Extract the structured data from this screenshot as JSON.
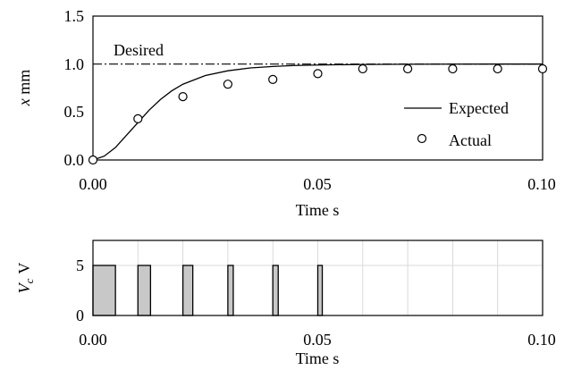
{
  "chart_data": [
    {
      "type": "line",
      "xlabel": "Time s",
      "ylabel_var": "x",
      "ylabel_unit": "mm",
      "xlim": [
        0,
        0.1
      ],
      "ylim": [
        0,
        1.5
      ],
      "x_ticks": [
        "0.00",
        "0.05",
        "0.10"
      ],
      "y_ticks": [
        "0.0",
        "0.5",
        "1.0",
        "1.5"
      ],
      "grid": false,
      "legend_position": "right",
      "series": [
        {
          "name": "Desired",
          "style": "dash-dot",
          "x": [
            0,
            0.1
          ],
          "y": [
            1.0,
            1.0
          ]
        },
        {
          "name": "Expected",
          "style": "solid",
          "x": [
            0.0,
            0.0025,
            0.005,
            0.0075,
            0.01,
            0.0125,
            0.015,
            0.0175,
            0.02,
            0.025,
            0.03,
            0.035,
            0.04,
            0.045,
            0.05,
            0.06,
            0.07,
            0.08,
            0.09,
            0.1
          ],
          "y": [
            0.0,
            0.04,
            0.13,
            0.26,
            0.39,
            0.52,
            0.63,
            0.72,
            0.79,
            0.88,
            0.93,
            0.96,
            0.975,
            0.985,
            0.99,
            0.996,
            0.998,
            0.999,
            1.0,
            1.0
          ]
        },
        {
          "name": "Actual",
          "style": "markers",
          "x": [
            0.0,
            0.01,
            0.02,
            0.03,
            0.04,
            0.05,
            0.06,
            0.07,
            0.08,
            0.09,
            0.1
          ],
          "y": [
            0.0,
            0.43,
            0.66,
            0.79,
            0.84,
            0.9,
            0.95,
            0.95,
            0.95,
            0.95,
            0.95
          ]
        }
      ],
      "labels": {
        "desired": "Desired",
        "expected": "Expected",
        "actual": "Actual"
      }
    },
    {
      "type": "bar",
      "xlabel": "Time s",
      "ylabel_var": "V",
      "ylabel_sub": "c",
      "ylabel_unit": "V",
      "xlim": [
        0,
        0.1
      ],
      "ylim": [
        0,
        7.5
      ],
      "x_ticks": [
        "0.00",
        "0.05",
        "0.10"
      ],
      "y_ticks": [
        "0",
        "5"
      ],
      "grid": true,
      "pulse_value": 5,
      "pulses": [
        {
          "start": 0.0,
          "end": 0.005
        },
        {
          "start": 0.01,
          "end": 0.0128
        },
        {
          "start": 0.02,
          "end": 0.0222
        },
        {
          "start": 0.03,
          "end": 0.0312
        },
        {
          "start": 0.04,
          "end": 0.0412
        },
        {
          "start": 0.05,
          "end": 0.051
        }
      ]
    }
  ]
}
